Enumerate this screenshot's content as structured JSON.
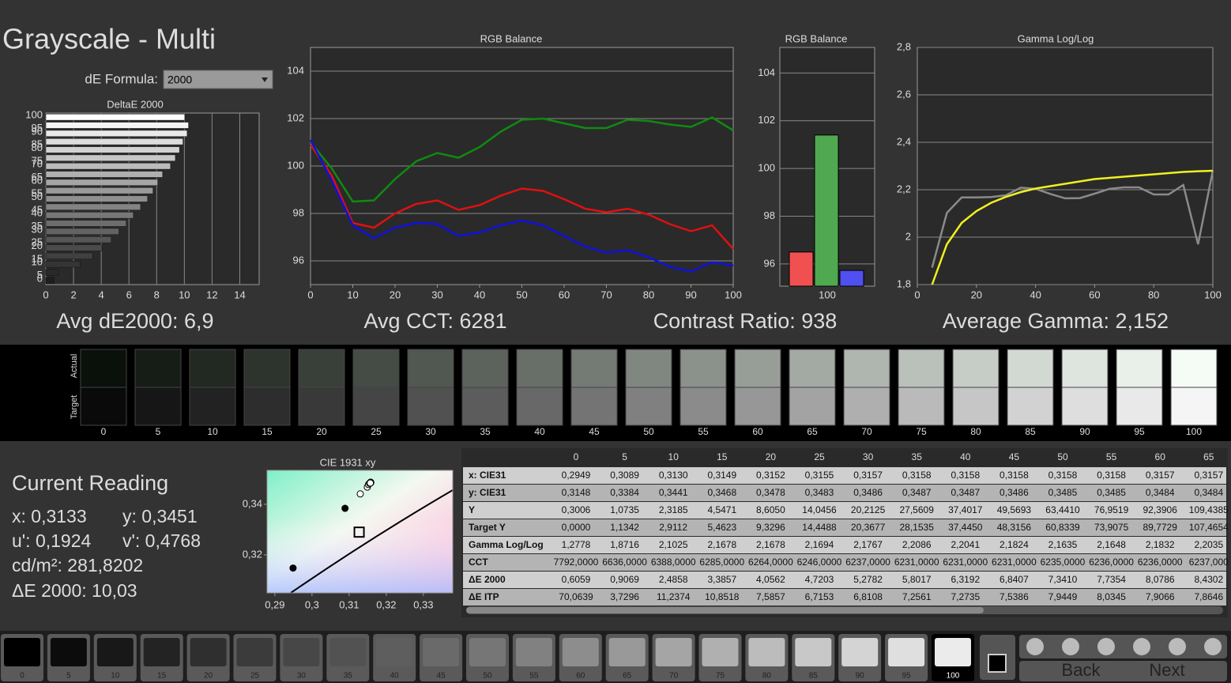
{
  "header": {
    "title": "Grayscale - Multi",
    "formula_label": "dE Formula:",
    "formula_value": "2000"
  },
  "chart_data": [
    {
      "type": "hbar",
      "title": "DeltaE 2000",
      "categories": [
        "100",
        "95",
        "90",
        "85",
        "80",
        "75",
        "70",
        "65",
        "60",
        "55",
        "50",
        "45",
        "40",
        "35",
        "30",
        "25",
        "20",
        "15",
        "10",
        "5",
        "0"
      ],
      "values": [
        10.03,
        10.3,
        10.2,
        9.9,
        9.65,
        9.35,
        9.0,
        8.4302,
        8.0786,
        7.7354,
        7.341,
        6.8407,
        6.3192,
        5.8017,
        5.2782,
        4.7203,
        4.0562,
        3.3857,
        2.4858,
        0.9069,
        0.6059
      ],
      "xlim": [
        0,
        15.4
      ],
      "xticks": [
        0,
        2,
        4,
        6,
        8,
        10,
        12,
        14
      ],
      "grid": true
    },
    {
      "type": "line",
      "title": "RGB Balance",
      "x": [
        0,
        5,
        10,
        15,
        20,
        25,
        30,
        35,
        40,
        45,
        50,
        55,
        60,
        65,
        70,
        75,
        80,
        85,
        90,
        95,
        100
      ],
      "series": [
        {
          "color": "#e01010",
          "values": [
            100.9,
            99.6,
            97.6,
            97.4,
            98.0,
            98.4,
            98.55,
            98.15,
            98.35,
            98.75,
            99.05,
            98.95,
            98.6,
            98.2,
            98.05,
            98.2,
            97.95,
            97.55,
            97.25,
            97.5,
            96.5
          ]
        },
        {
          "color": "#108a10",
          "values": [
            101.0,
            99.9,
            98.5,
            98.55,
            99.45,
            100.2,
            100.55,
            100.35,
            100.8,
            101.45,
            101.95,
            102.0,
            101.8,
            101.6,
            101.6,
            101.95,
            101.9,
            101.75,
            101.65,
            102.05,
            101.5
          ]
        },
        {
          "color": "#1010e0",
          "values": [
            101.1,
            99.4,
            97.5,
            96.95,
            97.4,
            97.6,
            97.55,
            97.05,
            97.2,
            97.5,
            97.7,
            97.5,
            97.05,
            96.6,
            96.35,
            96.45,
            96.15,
            95.75,
            95.55,
            95.95,
            95.8
          ]
        }
      ],
      "xlim": [
        0,
        100
      ],
      "xticks": [
        0,
        10,
        20,
        30,
        40,
        50,
        60,
        70,
        80,
        90,
        100
      ],
      "ylim": [
        95,
        105
      ],
      "yticks": [
        96,
        98,
        100,
        102,
        104
      ],
      "grid": true
    },
    {
      "type": "bar",
      "title": "RGB Balance",
      "categories": [
        "100"
      ],
      "series": [
        {
          "color": "#f05050",
          "values": [
            96.5
          ]
        },
        {
          "color": "#50a850",
          "values": [
            101.4
          ]
        },
        {
          "color": "#5050f0",
          "values": [
            95.73
          ]
        }
      ],
      "ylim": [
        95.07,
        105.07
      ],
      "yticks": [
        96,
        98,
        100,
        102,
        104
      ],
      "grid": true
    },
    {
      "type": "line",
      "title": "Gamma Log/Log",
      "x": [
        5,
        10,
        15,
        20,
        25,
        30,
        35,
        40,
        45,
        50,
        55,
        60,
        65,
        70,
        75,
        80,
        85,
        90,
        95,
        100
      ],
      "series": [
        {
          "color": "#8a8a8a",
          "values": [
            1.8716,
            2.1025,
            2.1678,
            2.1678,
            2.1694,
            2.1767,
            2.2086,
            2.2041,
            2.1824,
            2.1635,
            2.1648,
            2.1832,
            2.2035,
            2.21,
            2.21,
            2.18,
            2.18,
            2.22,
            1.97,
            2.28
          ]
        },
        {
          "color": "#f0f020",
          "values": [
            1.8,
            1.97,
            2.06,
            2.11,
            2.145,
            2.17,
            2.19,
            2.205,
            2.215,
            2.225,
            2.235,
            2.245,
            2.25,
            2.255,
            2.26,
            2.265,
            2.27,
            2.275,
            2.278,
            2.28
          ]
        }
      ],
      "xlim": [
        0,
        100
      ],
      "xticks": [
        0,
        20,
        40,
        60,
        80,
        100
      ],
      "ylim": [
        1.8,
        2.8
      ],
      "yticks": [
        {
          "value": 1.8,
          "label": "1,8"
        },
        2,
        {
          "value": 2.2,
          "label": "2,2"
        },
        {
          "value": 2.4,
          "label": "2,4"
        },
        {
          "value": 2.6,
          "label": "2,6"
        },
        {
          "value": 2.8,
          "label": "2,8"
        }
      ],
      "grid": true
    },
    {
      "type": "scatter",
      "title": "CIE 1931 xy",
      "series": [
        {
          "color": "#000000",
          "x": [
            0.2949,
            0.3089
          ],
          "y": [
            0.3148,
            0.3384
          ]
        },
        {
          "color": "#ffffff",
          "x": [
            0.313,
            0.3149,
            0.3152,
            0.3155,
            0.3157,
            0.3158,
            0.3158,
            0.3158,
            0.3158,
            0.3158,
            0.3157,
            0.3157
          ],
          "y": [
            0.3441,
            0.3468,
            0.3478,
            0.3483,
            0.3486,
            0.3487,
            0.3487,
            0.3486,
            0.3485,
            0.3485,
            0.3484,
            0.3484
          ]
        }
      ],
      "target": {
        "x": 0.3127,
        "y": 0.329
      },
      "xlim": [
        0.2879,
        0.3379
      ],
      "xticks": [
        {
          "value": 0.29,
          "label": "0,29"
        },
        {
          "value": 0.3,
          "label": "0,3"
        },
        {
          "value": 0.31,
          "label": "0,31"
        },
        {
          "value": 0.32,
          "label": "0,32"
        },
        {
          "value": 0.33,
          "label": "0,33"
        }
      ],
      "ylim": [
        0.305,
        0.3534
      ],
      "yticks": [
        {
          "value": 0.32,
          "label": "0,32"
        },
        {
          "value": 0.34,
          "label": "0,34"
        }
      ]
    }
  ],
  "summary": [
    "Avg dE2000: 6,9",
    "Avg CCT: 6281",
    "Contrast Ratio: 938",
    "Average Gamma: 2,152"
  ],
  "swatches": {
    "actual_label": "Actual",
    "target_label": "Target",
    "labels": [
      "0",
      "5",
      "10",
      "15",
      "20",
      "25",
      "30",
      "35",
      "40",
      "45",
      "50",
      "55",
      "60",
      "65",
      "70",
      "75",
      "80",
      "85",
      "90",
      "95",
      "100"
    ]
  },
  "current_reading": {
    "title": "Current Reading",
    "x": "x: 0,3133",
    "y": "y: 0,3451",
    "u": "u': 0,1924",
    "v": "v': 0,4768",
    "luminance": "cd/m²: 281,8202",
    "delta_e": "ΔE 2000: 10,03"
  },
  "table": {
    "header": [
      "0",
      "5",
      "10",
      "15",
      "20",
      "25",
      "30",
      "35",
      "40",
      "45",
      "50",
      "55",
      "60",
      "65"
    ],
    "rows": [
      [
        "x: CIE31",
        "0,2949",
        "0,3089",
        "0,3130",
        "0,3149",
        "0,3152",
        "0,3155",
        "0,3157",
        "0,3158",
        "0,3158",
        "0,3158",
        "0,3158",
        "0,3158",
        "0,3157",
        "0,3157"
      ],
      [
        "y: CIE31",
        "0,3148",
        "0,3384",
        "0,3441",
        "0,3468",
        "0,3478",
        "0,3483",
        "0,3486",
        "0,3487",
        "0,3487",
        "0,3486",
        "0,3485",
        "0,3485",
        "0,3484",
        "0,3484"
      ],
      [
        "Y",
        "0,3006",
        "1,0735",
        "2,3185",
        "4,5471",
        "8,6050",
        "14,0456",
        "20,2125",
        "27,5609",
        "37,4017",
        "49,5693",
        "63,4410",
        "76,9519",
        "92,3906",
        "109,4385"
      ],
      [
        "Target Y",
        "0,0000",
        "1,1342",
        "2,9112",
        "5,4623",
        "9,3296",
        "14,4488",
        "20,3677",
        "28,1535",
        "37,4450",
        "48,3156",
        "60,8339",
        "73,9075",
        "89,7729",
        "107,4654"
      ],
      [
        "Gamma Log/Log",
        "1,2778",
        "1,8716",
        "2,1025",
        "2,1678",
        "2,1678",
        "2,1694",
        "2,1767",
        "2,2086",
        "2,2041",
        "2,1824",
        "2,1635",
        "2,1648",
        "2,1832",
        "2,2035"
      ],
      [
        "CCT",
        "7792,0000",
        "6636,0000",
        "6388,0000",
        "6285,0000",
        "6264,0000",
        "6246,0000",
        "6237,0000",
        "6231,0000",
        "6231,0000",
        "6231,0000",
        "6235,0000",
        "6236,0000",
        "6236,0000",
        "6237,000"
      ],
      [
        "ΔE 2000",
        "0,6059",
        "0,9069",
        "2,4858",
        "3,3857",
        "4,0562",
        "4,7203",
        "5,2782",
        "5,8017",
        "6,3192",
        "6,8407",
        "7,3410",
        "7,7354",
        "8,0786",
        "8,4302"
      ],
      [
        "ΔE ITP",
        "70,0639",
        "3,7296",
        "11,2374",
        "10,8518",
        "7,5857",
        "6,7153",
        "6,8108",
        "7,2561",
        "7,2735",
        "7,5386",
        "7,9449",
        "8,0345",
        "7,9066",
        "7,8646"
      ]
    ]
  },
  "controls": {
    "levels": [
      "0",
      "5",
      "10",
      "15",
      "20",
      "25",
      "30",
      "35",
      "40",
      "45",
      "50",
      "55",
      "60",
      "65",
      "70",
      "75",
      "80",
      "85",
      "90",
      "95",
      "100"
    ],
    "back": "Back",
    "next": "Next"
  }
}
